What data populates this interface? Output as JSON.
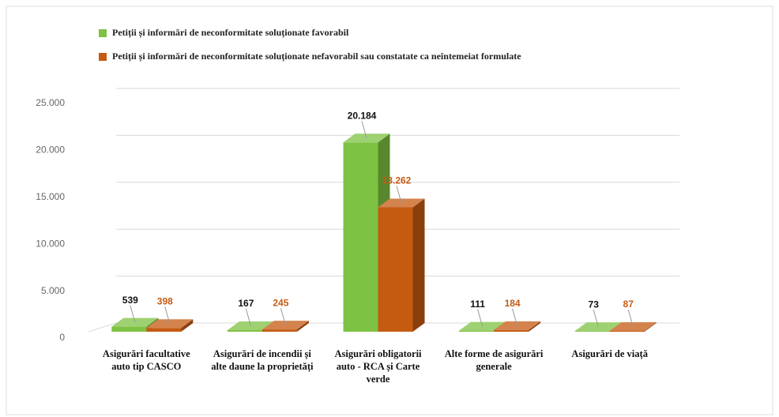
{
  "chart_data": {
    "type": "bar3d",
    "categories": [
      "Asigurări facultative auto tip CASCO",
      "Asigurări de incendii și alte daune la proprietăți",
      "Asigurări obligatorii auto - RCA și Carte verde",
      "Alte forme de asigurări generale",
      "Asigurări de viață"
    ],
    "series": [
      {
        "name": "Petiții și informări  de neconformitate soluționate favorabil",
        "color": "#7dc242",
        "label_color": "#111111",
        "values": [
          539,
          167,
          20184,
          111,
          73
        ],
        "value_labels": [
          "539",
          "167",
          "20.184",
          "111",
          "73"
        ]
      },
      {
        "name": "Petiții și informări  de neconformitate soluționate nefavorabil sau constatate ca neîntemeiat formulate",
        "color": "#c55a11",
        "label_color": "#c55a11",
        "values": [
          398,
          245,
          13262,
          184,
          87
        ],
        "value_labels": [
          "398",
          "245",
          "13.262",
          "184",
          "87"
        ]
      }
    ],
    "ylim": [
      0,
      25000
    ],
    "yticks": [
      0,
      {
        "value": 5000,
        "label": "5.000"
      },
      {
        "value": 10000,
        "label": "10.000"
      },
      {
        "value": 15000,
        "label": "15.000"
      },
      {
        "value": 20000,
        "label": "20.000"
      },
      {
        "value": 25000,
        "label": "25.000"
      }
    ],
    "grid": true,
    "legend": "top"
  }
}
